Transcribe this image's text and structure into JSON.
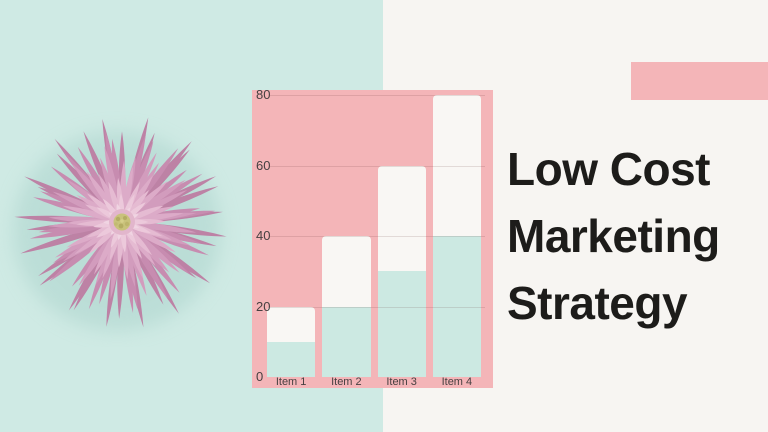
{
  "title": {
    "text": "Low Cost Marketing Strategy",
    "lines": [
      "Low Cost",
      "Marketing",
      "Strategy"
    ]
  },
  "decor": {
    "flower": "pink-spider-chrysanthemum-photo",
    "accent_bar_color": "#f4b5b8"
  },
  "colors": {
    "mint_background": "#cfeae4",
    "right_background": "#f7f5f2",
    "chart_background": "#f4b5b8",
    "bar_bottom_segment": "#cce9e2",
    "bar_top_segment": "#f9f7f4",
    "title_text": "#1d1c1a",
    "axis_text": "#474041"
  },
  "chart_data": {
    "type": "bar",
    "stacked": true,
    "title": "",
    "xlabel": "",
    "ylabel": "",
    "categories": [
      "Item 1",
      "Item 2",
      "Item 3",
      "Item 4"
    ],
    "series": [
      {
        "name": "bottom-segment",
        "color": "#cce9e2",
        "values": [
          10,
          20,
          30,
          40
        ]
      },
      {
        "name": "top-segment",
        "color": "#f9f7f4",
        "values": [
          10,
          20,
          30,
          40
        ]
      }
    ],
    "totals": [
      20,
      40,
      60,
      80
    ],
    "yticks": [
      0,
      20,
      40,
      60,
      80
    ],
    "ylim": [
      0,
      80
    ],
    "grid": true,
    "legend": false,
    "background": "#f4b5b8"
  }
}
